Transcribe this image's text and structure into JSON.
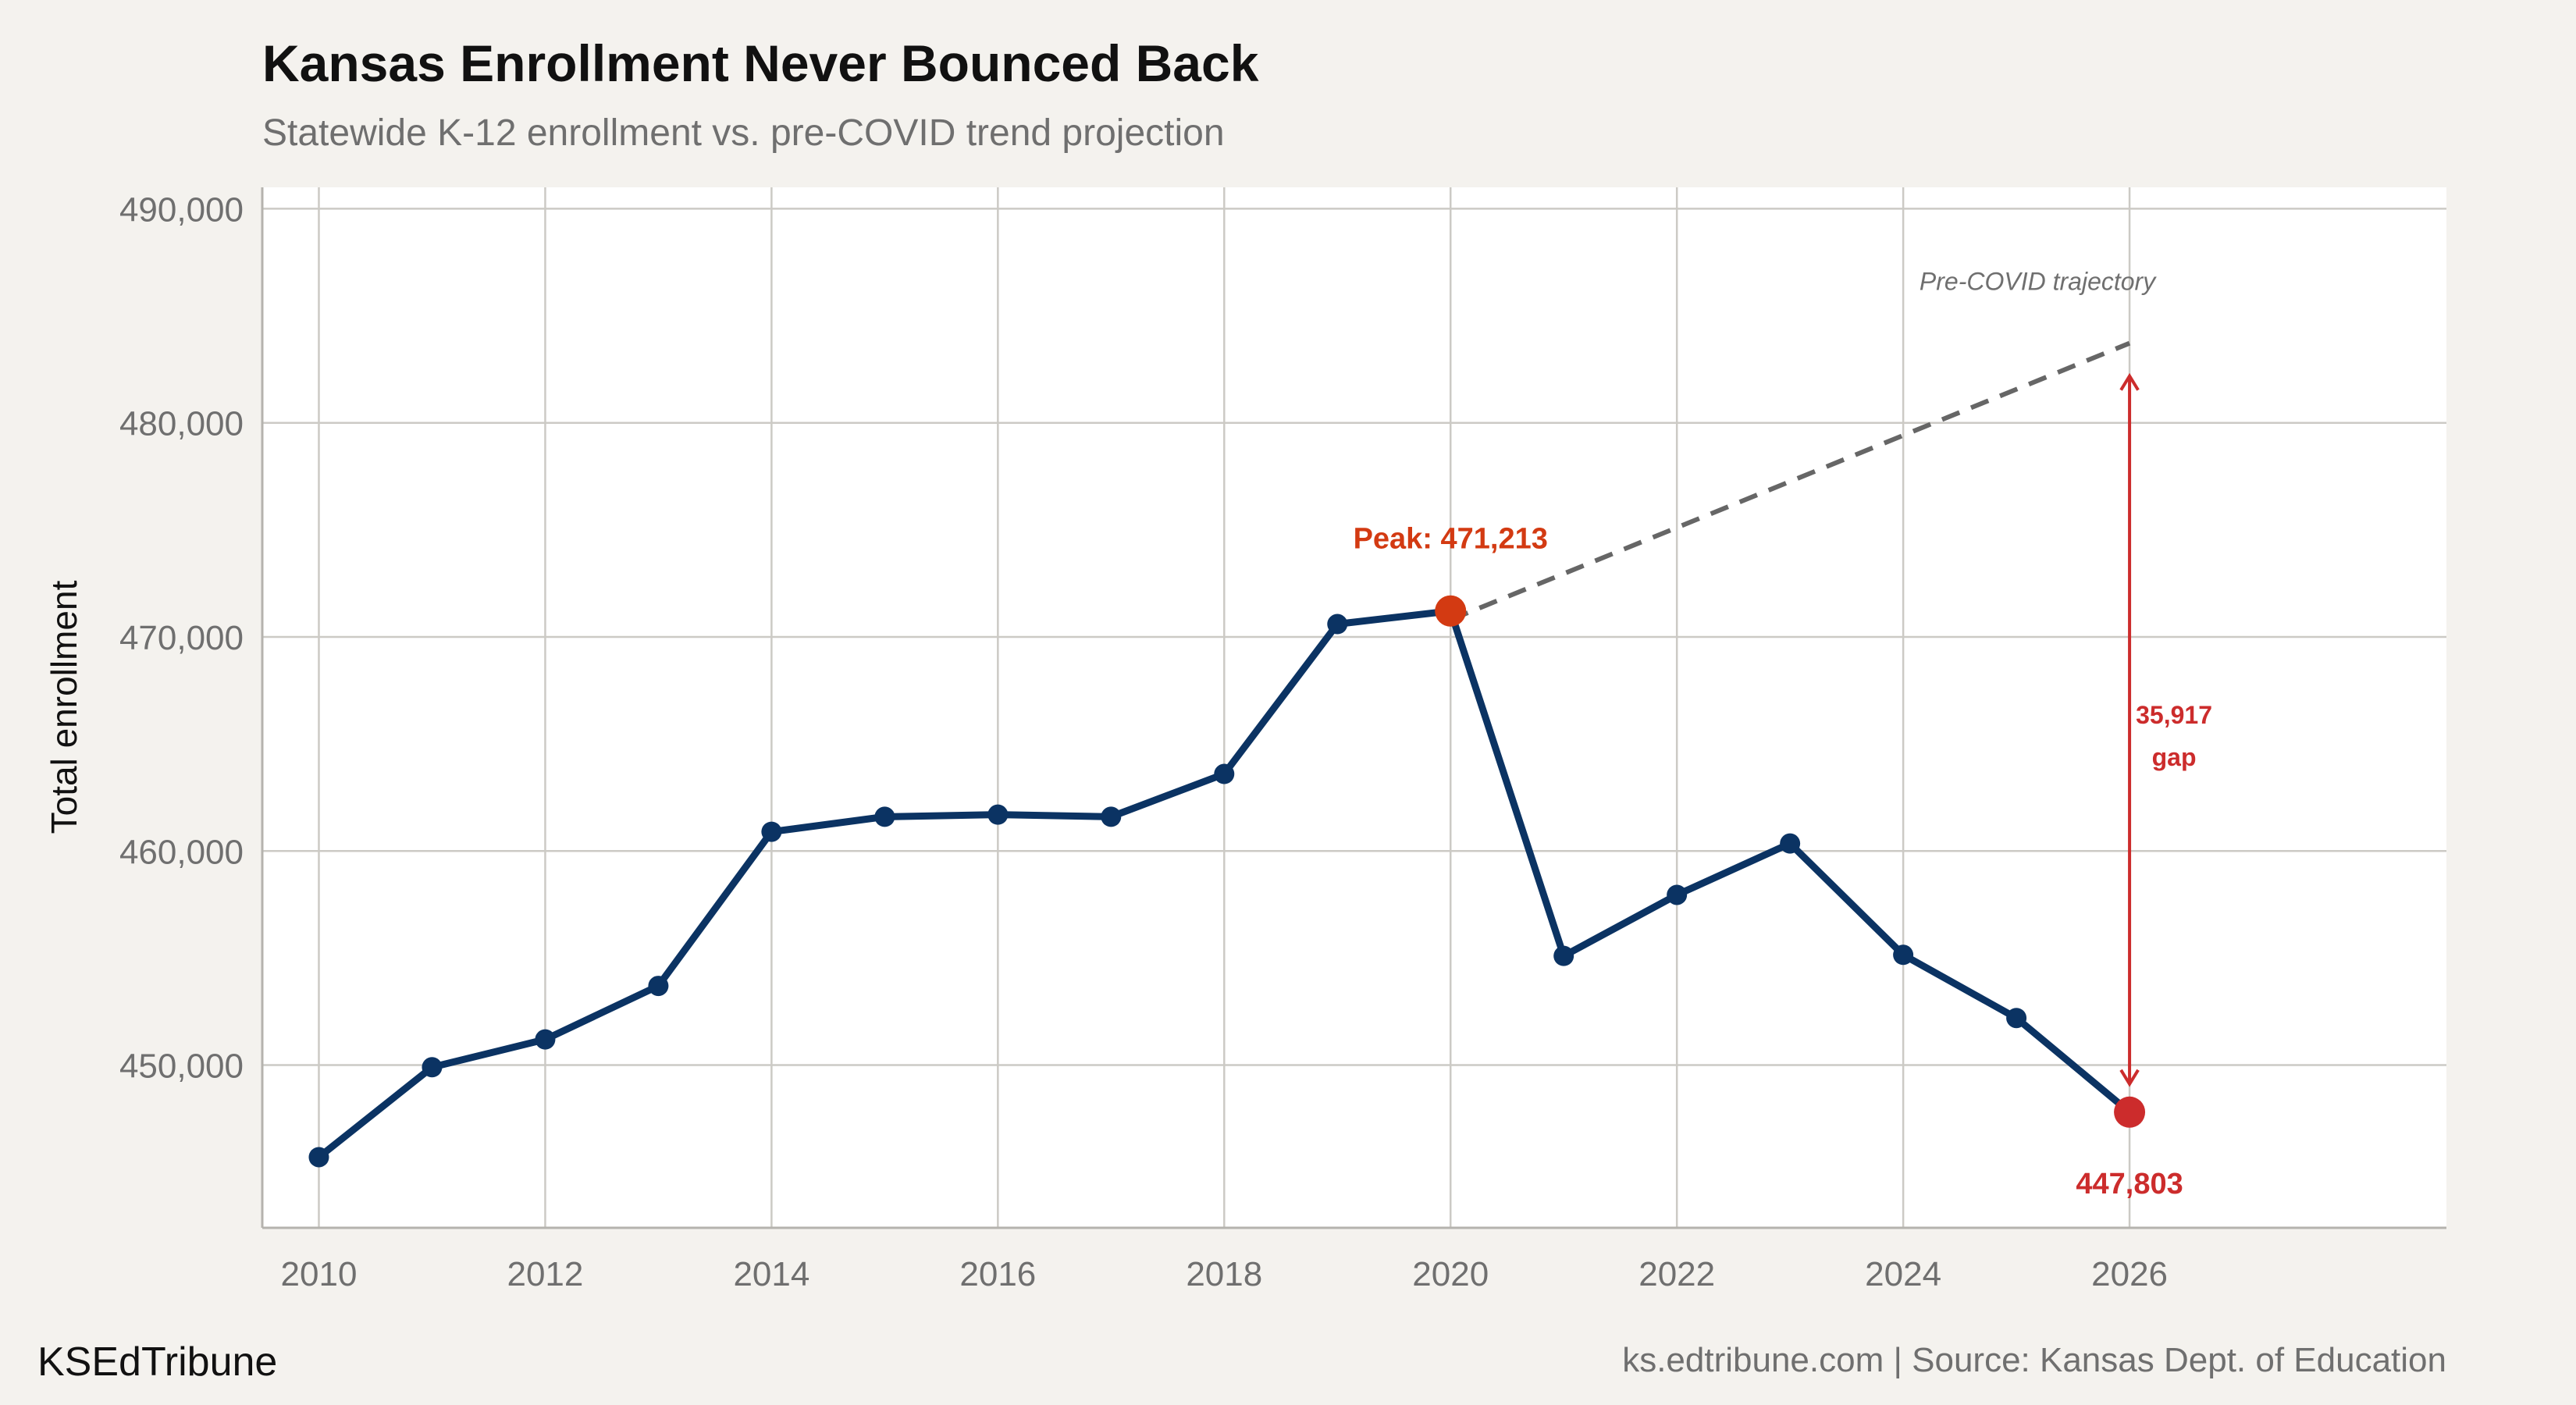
{
  "header": {
    "title": "Kansas Enrollment Never Bounced Back",
    "subtitle": "Statewide K-12 enrollment vs. pre-COVID trend projection"
  },
  "footer": {
    "brand": "KSEdTribune",
    "source": "ks.edtribune.com | Source: Kansas Dept. of Education"
  },
  "colors": {
    "background": "#f4f2ee",
    "panel": "#ffffff",
    "grid": "#cccac5",
    "line": "#0b3363",
    "peak": "#d33a12",
    "latest": "#cc2c2c",
    "trend": "#666666",
    "text_muted": "#6f6f6f",
    "text_dark": "#111111"
  },
  "chart_data": {
    "type": "line",
    "title": "Kansas Enrollment Never Bounced Back",
    "subtitle": "Statewide K-12 enrollment vs. pre-COVID trend projection",
    "xlabel": "",
    "ylabel": "Total enrollment",
    "xlim": [
      2009.5,
      2028.8
    ],
    "ylim": [
      442400,
      491000
    ],
    "x_ticks": [
      2010,
      2012,
      2014,
      2016,
      2018,
      2020,
      2022,
      2024,
      2026
    ],
    "x_tick_labels": [
      "2010",
      "2012",
      "2014",
      "2016",
      "2018",
      "2020",
      "2022",
      "2024",
      "2026"
    ],
    "y_ticks": [
      450000,
      460000,
      470000,
      480000,
      490000
    ],
    "y_tick_labels": [
      "450,000",
      "460,000",
      "470,000",
      "480,000",
      "490,000"
    ],
    "grid": true,
    "series": [
      {
        "x": [
          2010,
          2011,
          2012,
          2013,
          2014,
          2015,
          2016,
          2017,
          2018,
          2019,
          2020,
          2021,
          2022,
          2023,
          2024,
          2025,
          2026
        ],
        "y": [
          445700,
          449900,
          451200,
          453700,
          460900,
          461600,
          461700,
          461600,
          463600,
          470600,
          471213,
          455100,
          457950,
          460350,
          455150,
          452200,
          447803
        ]
      }
    ],
    "trend": {
      "label": "Pre-COVID trajectory",
      "x": [
        2020,
        2026
      ],
      "y": [
        470800,
        483720
      ],
      "style": "dashed"
    },
    "annotations": {
      "peak": {
        "x": 2020,
        "y": 471213,
        "label": "Peak: 471,213"
      },
      "latest": {
        "x": 2026,
        "y": 447803,
        "label": "447,803"
      },
      "gap": {
        "x": 2026,
        "y_from": 447803,
        "y_to": 483720,
        "label_line1": "35,917",
        "label_line2": "gap"
      }
    }
  }
}
